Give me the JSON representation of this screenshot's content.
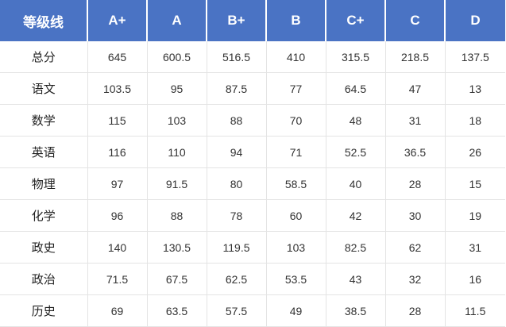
{
  "table": {
    "corner_label": "等级线",
    "columns": [
      "A+",
      "A",
      "B+",
      "B",
      "C+",
      "C",
      "D"
    ],
    "rows": [
      {
        "subject": "总分",
        "values": [
          "645",
          "600.5",
          "516.5",
          "410",
          "315.5",
          "218.5",
          "137.5"
        ]
      },
      {
        "subject": "语文",
        "values": [
          "103.5",
          "95",
          "87.5",
          "77",
          "64.5",
          "47",
          "13"
        ]
      },
      {
        "subject": "数学",
        "values": [
          "115",
          "103",
          "88",
          "70",
          "48",
          "31",
          "18"
        ]
      },
      {
        "subject": "英语",
        "values": [
          "116",
          "110",
          "94",
          "71",
          "52.5",
          "36.5",
          "26"
        ]
      },
      {
        "subject": "物理",
        "values": [
          "97",
          "91.5",
          "80",
          "58.5",
          "40",
          "28",
          "15"
        ]
      },
      {
        "subject": "化学",
        "values": [
          "96",
          "88",
          "78",
          "60",
          "42",
          "30",
          "19"
        ]
      },
      {
        "subject": "政史",
        "values": [
          "140",
          "130.5",
          "119.5",
          "103",
          "82.5",
          "62",
          "31"
        ]
      },
      {
        "subject": "政治",
        "values": [
          "71.5",
          "67.5",
          "62.5",
          "53.5",
          "43",
          "32",
          "16"
        ]
      },
      {
        "subject": "历史",
        "values": [
          "69",
          "63.5",
          "57.5",
          "49",
          "38.5",
          "28",
          "11.5"
        ]
      }
    ]
  }
}
